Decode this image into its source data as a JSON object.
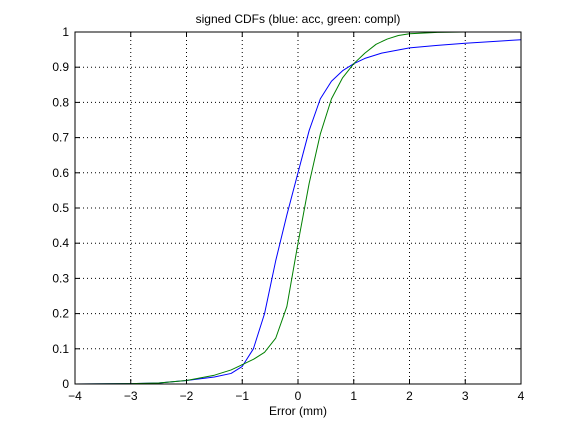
{
  "chart_data": {
    "type": "line",
    "title": "signed CDFs (blue: acc, green: compl)",
    "xlabel": "Error (mm)",
    "ylabel": "",
    "xlim": [
      -4,
      4
    ],
    "ylim": [
      0,
      1
    ],
    "x_ticks": [
      -4,
      -3,
      -2,
      -1,
      0,
      1,
      2,
      3,
      4
    ],
    "y_ticks": [
      0,
      0.1,
      0.2,
      0.3,
      0.4,
      0.5,
      0.6,
      0.7,
      0.8,
      0.9,
      1
    ],
    "x_tick_labels": [
      "−4",
      "−3",
      "−2",
      "−1",
      "0",
      "1",
      "2",
      "3",
      "4"
    ],
    "y_tick_labels": [
      "0",
      "0.1",
      "0.2",
      "0.3",
      "0.4",
      "0.5",
      "0.6",
      "0.7",
      "0.8",
      "0.9",
      "1"
    ],
    "grid": true,
    "series": [
      {
        "color": "#0000ff",
        "x": [
          -4,
          -3,
          -2.5,
          -2,
          -1.5,
          -1.2,
          -1.0,
          -0.8,
          -0.6,
          -0.4,
          -0.2,
          0,
          0.2,
          0.4,
          0.6,
          0.8,
          1.0,
          1.2,
          1.5,
          2.0,
          2.5,
          3.0,
          3.5,
          4.0
        ],
        "y": [
          0,
          0.001,
          0.003,
          0.01,
          0.02,
          0.03,
          0.05,
          0.1,
          0.2,
          0.35,
          0.48,
          0.6,
          0.72,
          0.81,
          0.86,
          0.89,
          0.91,
          0.925,
          0.94,
          0.955,
          0.962,
          0.968,
          0.973,
          0.978
        ]
      },
      {
        "color": "#008000",
        "x": [
          -4,
          -3,
          -2.5,
          -2,
          -1.5,
          -1.2,
          -1.0,
          -0.8,
          -0.6,
          -0.4,
          -0.2,
          0,
          0.2,
          0.4,
          0.6,
          0.8,
          1.0,
          1.2,
          1.4,
          1.6,
          1.8,
          2.0,
          2.5,
          3.0,
          4.0
        ],
        "y": [
          0,
          0.001,
          0.003,
          0.01,
          0.025,
          0.04,
          0.055,
          0.07,
          0.09,
          0.13,
          0.22,
          0.4,
          0.57,
          0.71,
          0.81,
          0.87,
          0.91,
          0.94,
          0.965,
          0.98,
          0.99,
          0.995,
          0.999,
          1.0,
          1.0
        ]
      }
    ]
  }
}
